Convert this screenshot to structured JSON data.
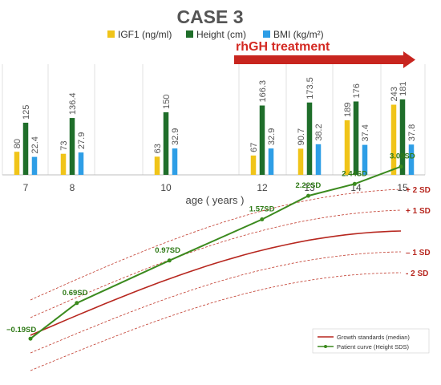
{
  "chart_data": [
    {
      "type": "bar",
      "title": "CASE 3",
      "annotation": "rhGH treatment",
      "xlabel": "age ( years )",
      "categories": [
        "7",
        "8",
        "10",
        "12",
        "13",
        "14",
        "15"
      ],
      "series": [
        {
          "name": "IGF1 (ng/ml)",
          "color": "#f0c419",
          "values": [
            80,
            73,
            63,
            67,
            90.7,
            189,
            243
          ],
          "labels": [
            "80",
            "73",
            "63",
            "67",
            "90.7",
            "189",
            "243"
          ]
        },
        {
          "name": "Height (cm)",
          "color": "#1f6e2a",
          "values": [
            125,
            136.4,
            150,
            166.3,
            173.5,
            176,
            181
          ],
          "labels": [
            "125",
            "136.4",
            "150",
            "166.3",
            "173.5",
            "176",
            "181"
          ]
        },
        {
          "name": "BMI (kg/m²)",
          "color": "#2e9ee6",
          "values": [
            22.4,
            27.9,
            32.9,
            32.9,
            38.2,
            37.4,
            37.8
          ],
          "labels": [
            "22.4",
            "27.9",
            "32.9",
            "32.9",
            "38.2",
            "37.4",
            "37.8"
          ]
        }
      ]
    },
    {
      "type": "line",
      "sd_labels": [
        "+ 2 SD",
        "+ 1 SD",
        "– 1 SD",
        "- 2 SD"
      ],
      "series": [
        {
          "name": "Growth standards (median)",
          "color": "#b7271f"
        },
        {
          "name": "Patient curve (Height SDS)",
          "color": "#3b8a1e",
          "sds": [
            -0.19,
            0.69,
            0.97,
            1.57,
            2.22,
            2.44,
            3.09
          ],
          "labels": [
            "−0.19SD",
            "0.69SD",
            "0.97SD",
            "1.57SD",
            "2.22SD",
            "2.44SD",
            "3.09SD"
          ]
        }
      ]
    }
  ]
}
